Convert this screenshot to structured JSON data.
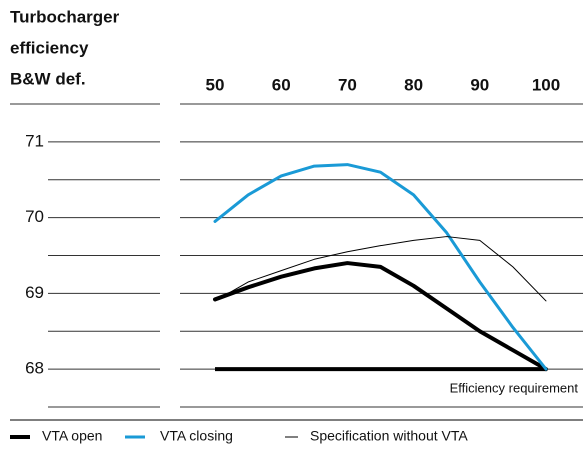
{
  "chart_data": {
    "type": "line",
    "title": [
      "Turbocharger",
      "efficiency",
      "B&W def."
    ],
    "x": [
      50,
      55,
      60,
      65,
      70,
      75,
      80,
      85,
      90,
      95,
      100
    ],
    "xlim": [
      50,
      100
    ],
    "xticks": [
      50,
      60,
      70,
      80,
      90,
      100
    ],
    "ylim": [
      67.5,
      71.5
    ],
    "yticks": [
      68,
      69,
      70,
      71
    ],
    "minor_yticks": [
      67.5,
      68.5,
      69.5,
      70.5,
      71.5
    ],
    "grid": true,
    "series": [
      {
        "name": "VTA open",
        "color": "#000000",
        "width": 4,
        "values": [
          68.92,
          69.08,
          69.22,
          69.33,
          69.4,
          69.35,
          69.1,
          68.8,
          68.5,
          68.25,
          68.0
        ]
      },
      {
        "name": "VTA closing",
        "color": "#1a9ad6",
        "width": 3,
        "values": [
          69.95,
          70.3,
          70.55,
          70.68,
          70.7,
          70.6,
          70.3,
          69.8,
          69.15,
          68.55,
          68.0
        ]
      },
      {
        "name": "Specification without VTA",
        "color": "#000000",
        "width": 1,
        "values": [
          68.9,
          69.15,
          69.3,
          69.45,
          69.55,
          69.63,
          69.7,
          69.75,
          69.7,
          69.35,
          68.9
        ]
      }
    ],
    "requirement": {
      "label": "Efficiency requirement",
      "value": 68,
      "color": "#000000"
    },
    "legend": "bottom"
  }
}
